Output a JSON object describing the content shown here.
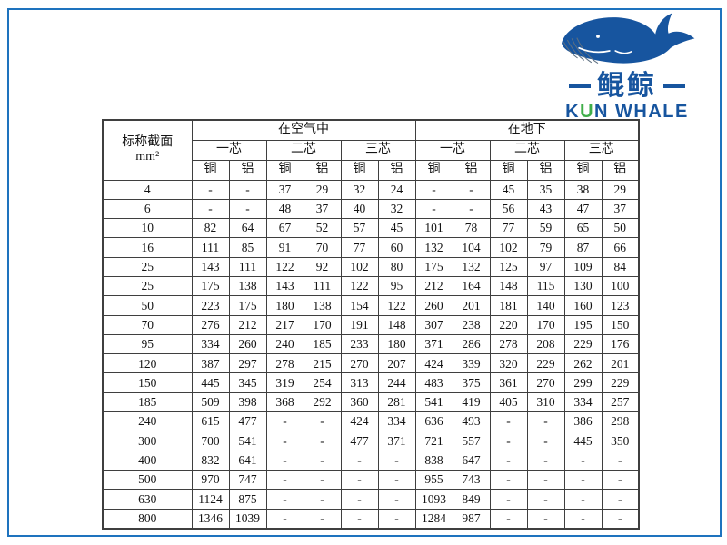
{
  "colors": {
    "logo_blue": "#17559f",
    "logo_green": "#3fae49",
    "frame_blue": "#1e73be"
  },
  "logo": {
    "name_cn": "鲲鲸",
    "en_k": "K",
    "en_u": "U",
    "en_rest": "N WHALE"
  },
  "table": {
    "corner": {
      "line1": "标称截面",
      "line2": "mm²"
    },
    "groups": [
      {
        "label": "在空气中"
      },
      {
        "label": "在地下"
      }
    ],
    "subgroups": [
      "一芯",
      "二芯",
      "三芯"
    ],
    "materials": [
      "铜",
      "铝"
    ],
    "rows": [
      {
        "size": "4",
        "values": [
          "-",
          "-",
          "37",
          "29",
          "32",
          "24",
          "-",
          "-",
          "45",
          "35",
          "38",
          "29"
        ]
      },
      {
        "size": "6",
        "values": [
          "-",
          "-",
          "48",
          "37",
          "40",
          "32",
          "-",
          "-",
          "56",
          "43",
          "47",
          "37"
        ]
      },
      {
        "size": "10",
        "values": [
          "82",
          "64",
          "67",
          "52",
          "57",
          "45",
          "101",
          "78",
          "77",
          "59",
          "65",
          "50"
        ]
      },
      {
        "size": "16",
        "values": [
          "111",
          "85",
          "91",
          "70",
          "77",
          "60",
          "132",
          "104",
          "102",
          "79",
          "87",
          "66"
        ]
      },
      {
        "size": "25",
        "values": [
          "143",
          "111",
          "122",
          "92",
          "102",
          "80",
          "175",
          "132",
          "125",
          "97",
          "109",
          "84"
        ]
      },
      {
        "size": "25",
        "values": [
          "175",
          "138",
          "143",
          "111",
          "122",
          "95",
          "212",
          "164",
          "148",
          "115",
          "130",
          "100"
        ]
      },
      {
        "size": "50",
        "values": [
          "223",
          "175",
          "180",
          "138",
          "154",
          "122",
          "260",
          "201",
          "181",
          "140",
          "160",
          "123"
        ]
      },
      {
        "size": "70",
        "values": [
          "276",
          "212",
          "217",
          "170",
          "191",
          "148",
          "307",
          "238",
          "220",
          "170",
          "195",
          "150"
        ]
      },
      {
        "size": "95",
        "values": [
          "334",
          "260",
          "240",
          "185",
          "233",
          "180",
          "371",
          "286",
          "278",
          "208",
          "229",
          "176"
        ]
      },
      {
        "size": "120",
        "values": [
          "387",
          "297",
          "278",
          "215",
          "270",
          "207",
          "424",
          "339",
          "320",
          "229",
          "262",
          "201"
        ]
      },
      {
        "size": "150",
        "values": [
          "445",
          "345",
          "319",
          "254",
          "313",
          "244",
          "483",
          "375",
          "361",
          "270",
          "299",
          "229"
        ]
      },
      {
        "size": "185",
        "values": [
          "509",
          "398",
          "368",
          "292",
          "360",
          "281",
          "541",
          "419",
          "405",
          "310",
          "334",
          "257"
        ]
      },
      {
        "size": "240",
        "values": [
          "615",
          "477",
          "-",
          "-",
          "424",
          "334",
          "636",
          "493",
          "-",
          "-",
          "386",
          "298"
        ]
      },
      {
        "size": "300",
        "values": [
          "700",
          "541",
          "-",
          "-",
          "477",
          "371",
          "721",
          "557",
          "-",
          "-",
          "445",
          "350"
        ]
      },
      {
        "size": "400",
        "values": [
          "832",
          "641",
          "-",
          "-",
          "-",
          "-",
          "838",
          "647",
          "-",
          "-",
          "-",
          "-"
        ]
      },
      {
        "size": "500",
        "values": [
          "970",
          "747",
          "-",
          "-",
          "-",
          "-",
          "955",
          "743",
          "-",
          "-",
          "-",
          "-"
        ]
      },
      {
        "size": "630",
        "values": [
          "1124",
          "875",
          "-",
          "-",
          "-",
          "-",
          "1093",
          "849",
          "-",
          "-",
          "-",
          "-"
        ]
      },
      {
        "size": "800",
        "values": [
          "1346",
          "1039",
          "-",
          "-",
          "-",
          "-",
          "1284",
          "987",
          "-",
          "-",
          "-",
          "-"
        ]
      }
    ]
  }
}
